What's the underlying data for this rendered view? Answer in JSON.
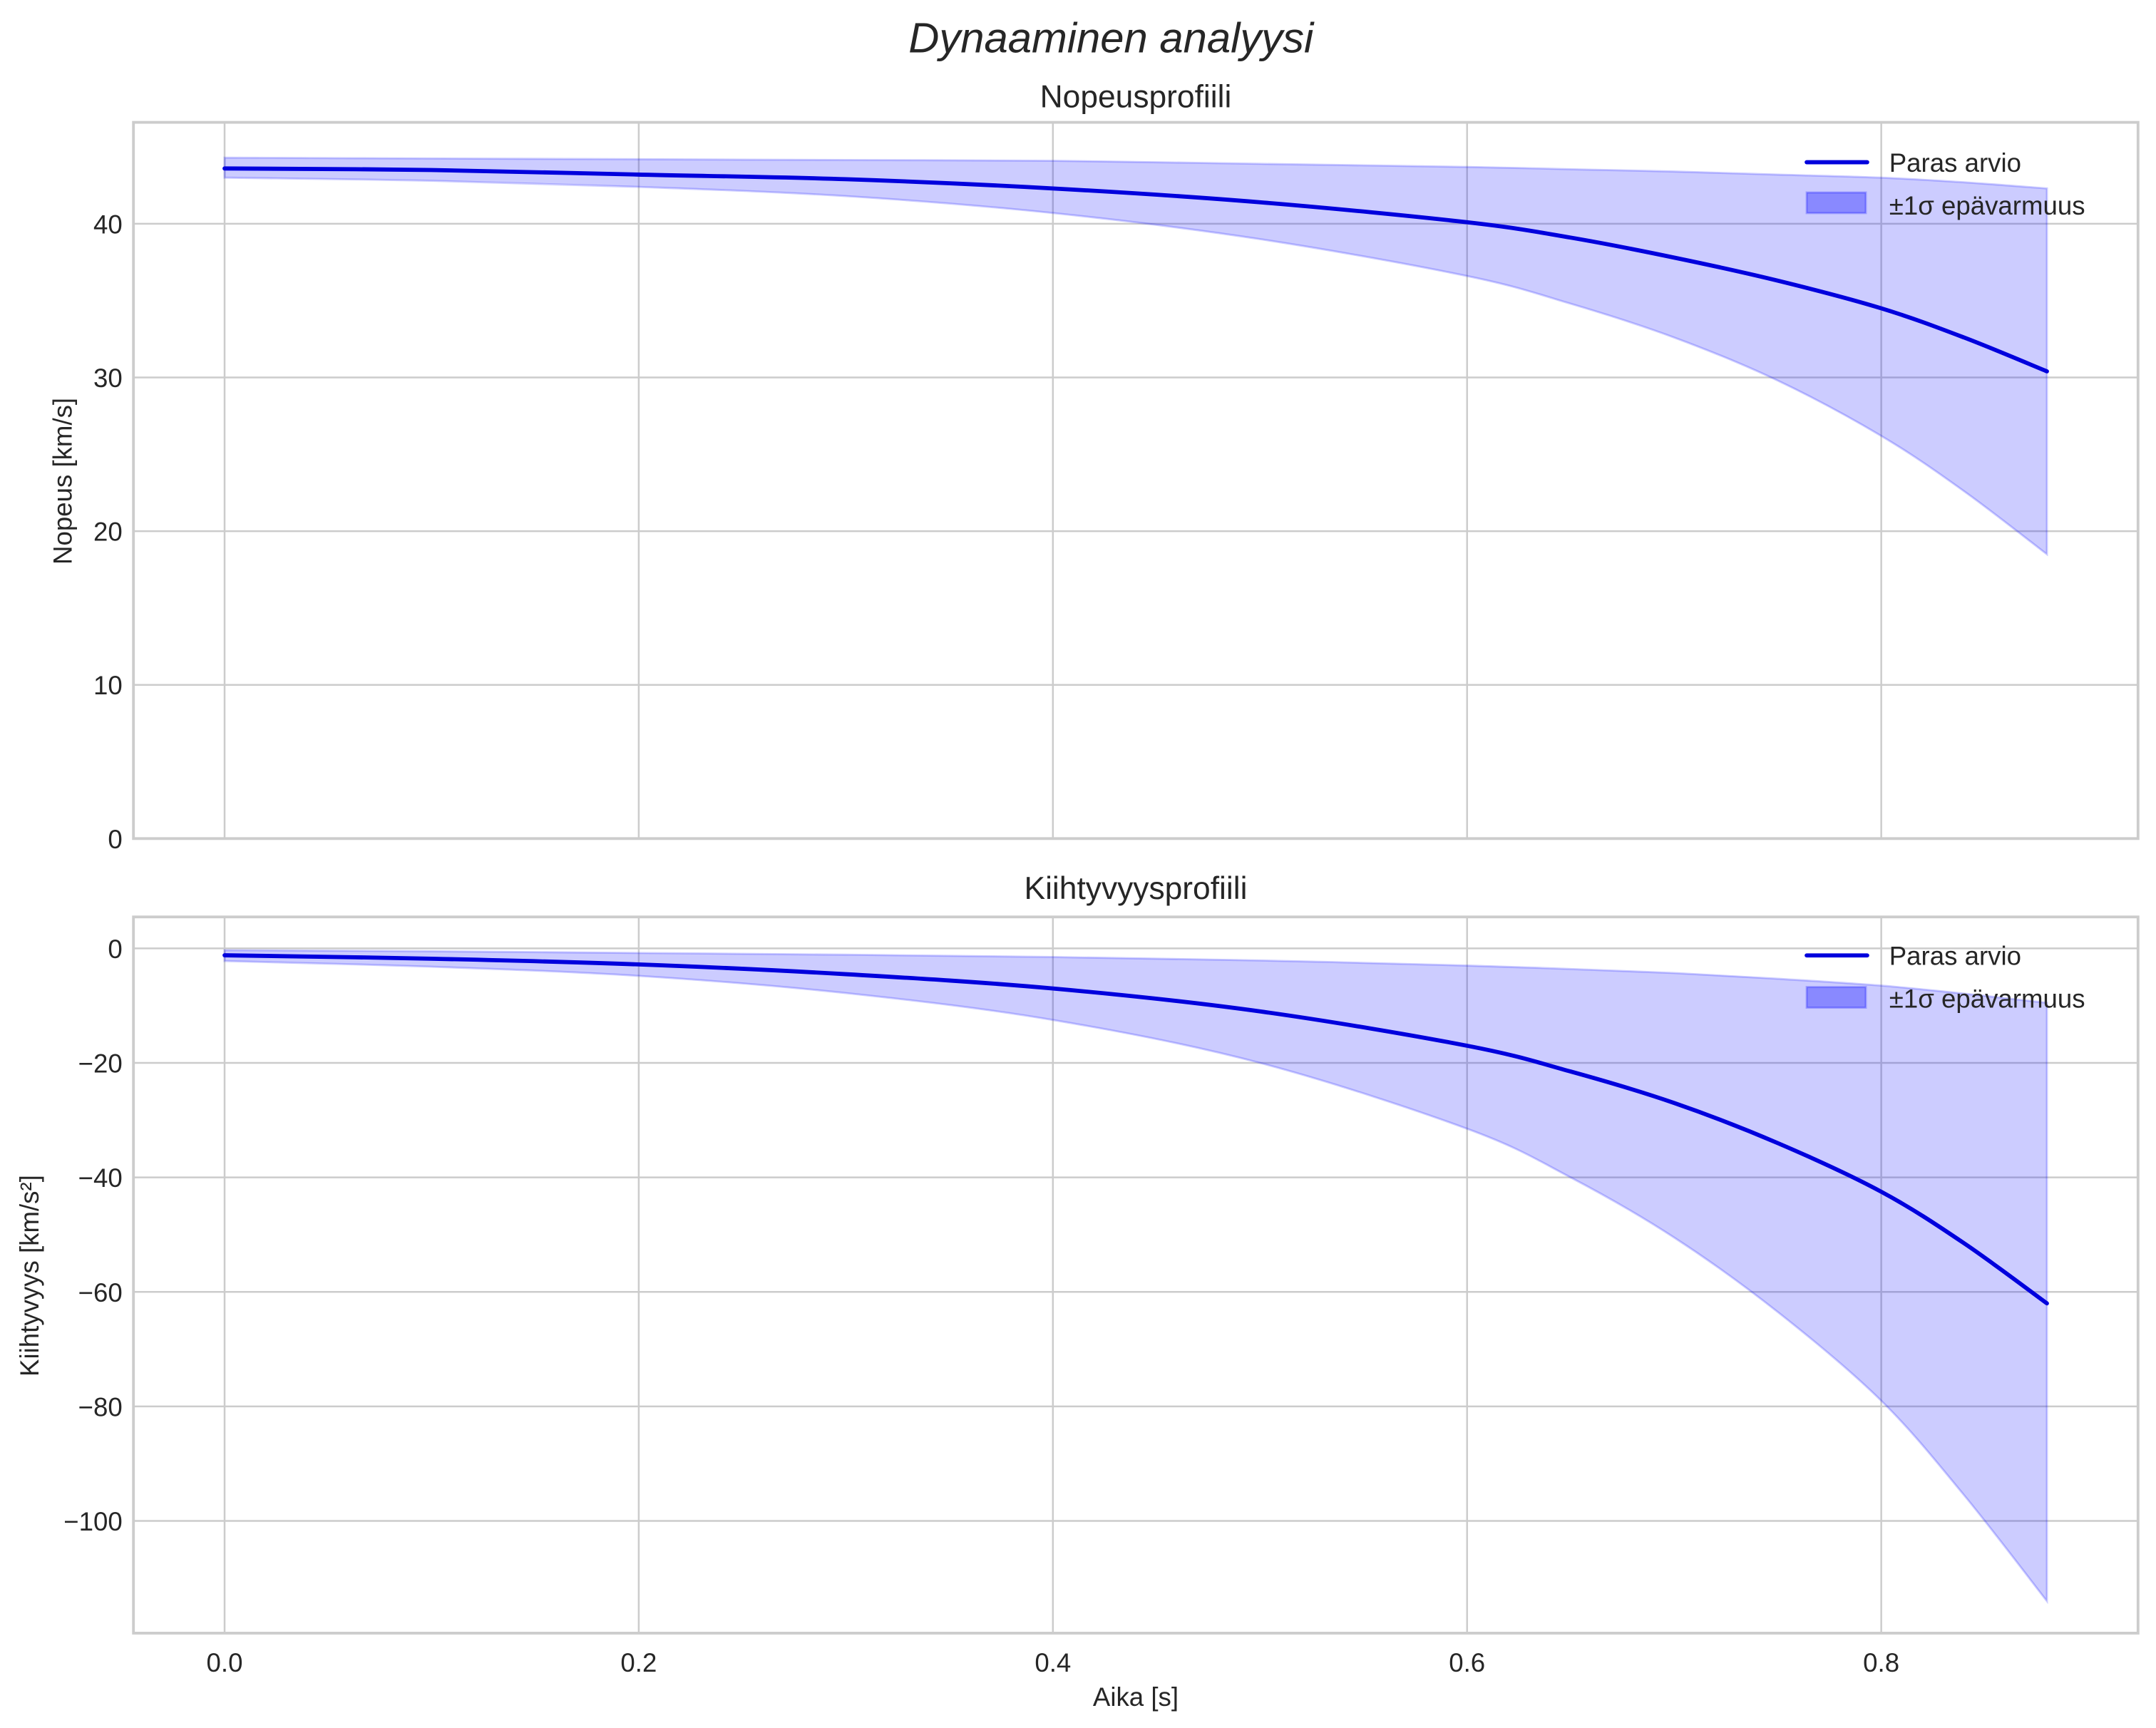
{
  "figure": {
    "suptitle": "Dynaaminen analyysi",
    "colors": {
      "line": "#0000dd",
      "band": "#0000ff",
      "grid": "#cccccc",
      "text": "#262626"
    }
  },
  "legend": {
    "line_label": "Paras arvio",
    "band_label": "±1σ epävarmuus"
  },
  "chart_data": [
    {
      "type": "line",
      "title": "Nopeusprofiili",
      "xlabel": "",
      "ylabel": "Nopeus [km/s]",
      "xlim": [
        -0.044,
        0.924
      ],
      "ylim": [
        0,
        46.6
      ],
      "xticks": [
        0.0,
        0.2,
        0.4,
        0.6,
        0.8
      ],
      "xtick_labels": [],
      "yticks": [
        0,
        10,
        20,
        30,
        40
      ],
      "ytick_labels": [
        "0",
        "10",
        "20",
        "30",
        "40"
      ],
      "grid": true,
      "legend_position": "upper right",
      "x": [
        0.0,
        0.1,
        0.2,
        0.3,
        0.4,
        0.5,
        0.6,
        0.65,
        0.7,
        0.75,
        0.8,
        0.84,
        0.88
      ],
      "series": [
        {
          "name": "Paras arvio",
          "values": [
            43.6,
            43.5,
            43.2,
            42.9,
            42.3,
            41.4,
            40.1,
            39.1,
            37.8,
            36.3,
            34.5,
            32.6,
            30.4
          ]
        },
        {
          "name": "±1σ epävarmuus (alaraja)",
          "values": [
            43.0,
            42.8,
            42.4,
            41.8,
            40.7,
            39.0,
            36.6,
            34.8,
            32.6,
            29.8,
            26.2,
            22.6,
            18.5
          ]
        },
        {
          "name": "±1σ epävarmuus (yläraja)",
          "values": [
            44.3,
            44.25,
            44.2,
            44.15,
            44.1,
            43.9,
            43.7,
            43.55,
            43.4,
            43.2,
            43.0,
            42.7,
            42.3
          ]
        }
      ]
    },
    {
      "type": "line",
      "title": "Kiihtyvyysprofiili",
      "xlabel": "Aika [s]",
      "ylabel": "Kiihtyvyys [km/s²]",
      "xlim": [
        -0.044,
        0.924
      ],
      "ylim": [
        -119.6,
        5.5
      ],
      "xticks": [
        0.0,
        0.2,
        0.4,
        0.6,
        0.8
      ],
      "xtick_labels": [
        "0.0",
        "0.2",
        "0.4",
        "0.6",
        "0.8"
      ],
      "yticks": [
        0,
        -20,
        -40,
        -60,
        -80,
        -100
      ],
      "ytick_labels": [
        "0",
        "−20",
        "−40",
        "−60",
        "−80",
        "−100"
      ],
      "grid": true,
      "legend_position": "upper right",
      "x": [
        0.0,
        0.1,
        0.2,
        0.3,
        0.4,
        0.5,
        0.6,
        0.65,
        0.7,
        0.75,
        0.8,
        0.84,
        0.88
      ],
      "series": [
        {
          "name": "Paras arvio",
          "values": [
            -1.2,
            -1.8,
            -2.8,
            -4.5,
            -7.0,
            -11.0,
            -17.0,
            -21.5,
            -27.0,
            -34.0,
            -42.5,
            -51.5,
            -62.0
          ]
        },
        {
          "name": "±1σ epävarmuus (alaraja)",
          "values": [
            -2.2,
            -3.2,
            -4.8,
            -7.8,
            -12.5,
            -20.0,
            -31.5,
            -40.0,
            -50.5,
            -63.5,
            -79.0,
            -95.5,
            -114.0
          ]
        },
        {
          "name": "±1σ epävarmuus (yläraja)",
          "values": [
            -0.3,
            -0.5,
            -0.8,
            -1.1,
            -1.5,
            -2.1,
            -3.0,
            -3.6,
            -4.3,
            -5.3,
            -6.5,
            -7.9,
            -9.5
          ]
        }
      ]
    }
  ]
}
